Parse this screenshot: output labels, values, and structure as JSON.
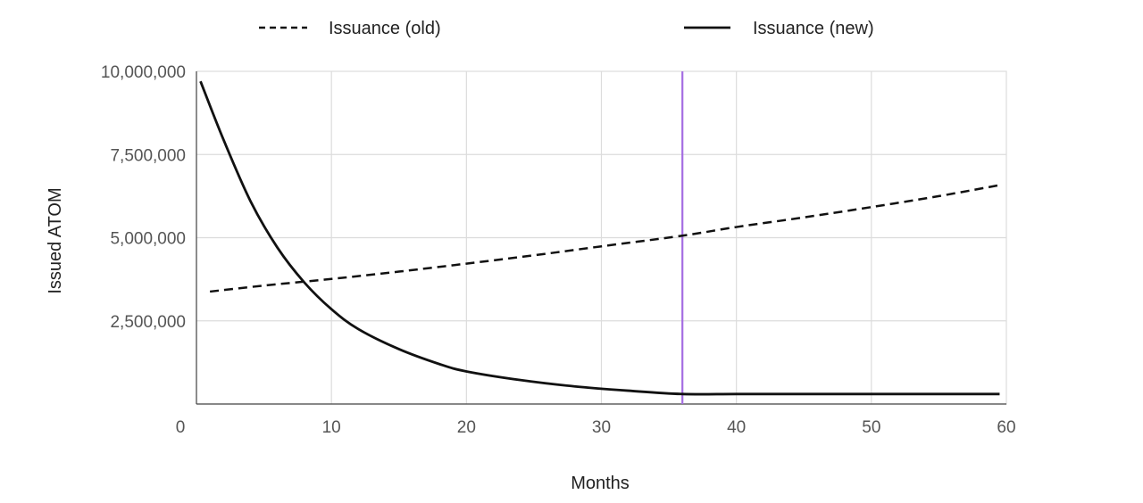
{
  "chart_data": {
    "type": "line",
    "title": "",
    "xlabel": "Months",
    "ylabel": "Issued ATOM",
    "xlim": [
      0,
      60
    ],
    "ylim": [
      0,
      10000000
    ],
    "x_ticks": [
      0,
      10,
      20,
      30,
      40,
      50,
      60
    ],
    "x_tick_labels": [
      "0",
      "10",
      "20",
      "30",
      "40",
      "50",
      "60"
    ],
    "y_ticks": [
      2500000,
      5000000,
      7500000,
      10000000
    ],
    "y_tick_labels": [
      "2,500,000",
      "5,000,000",
      "7,500,000",
      "10,000,000"
    ],
    "grid": true,
    "legend_position": "top",
    "vertical_marker": {
      "x": 36,
      "color": "#a56de2"
    },
    "series": [
      {
        "name": "Issuance (old)",
        "style": "dashed",
        "color": "#111111",
        "x": [
          1,
          5,
          10,
          15,
          20,
          25,
          30,
          36,
          40,
          45,
          50,
          55,
          59.5
        ],
        "y": [
          3380000,
          3560000,
          3760000,
          3980000,
          4220000,
          4470000,
          4740000,
          5060000,
          5320000,
          5610000,
          5920000,
          6250000,
          6580000
        ]
      },
      {
        "name": "Issuance (new)",
        "style": "solid",
        "color": "#111111",
        "x": [
          0.3,
          2,
          4,
          6,
          8,
          10,
          12,
          15,
          18,
          20,
          24,
          28,
          32,
          36,
          40,
          45,
          50,
          55,
          59.5
        ],
        "y": [
          9700000,
          7950000,
          6100000,
          4700000,
          3650000,
          2850000,
          2250000,
          1650000,
          1200000,
          980000,
          720000,
          530000,
          400000,
          300000,
          300000,
          300000,
          300000,
          300000,
          300000
        ]
      }
    ]
  }
}
